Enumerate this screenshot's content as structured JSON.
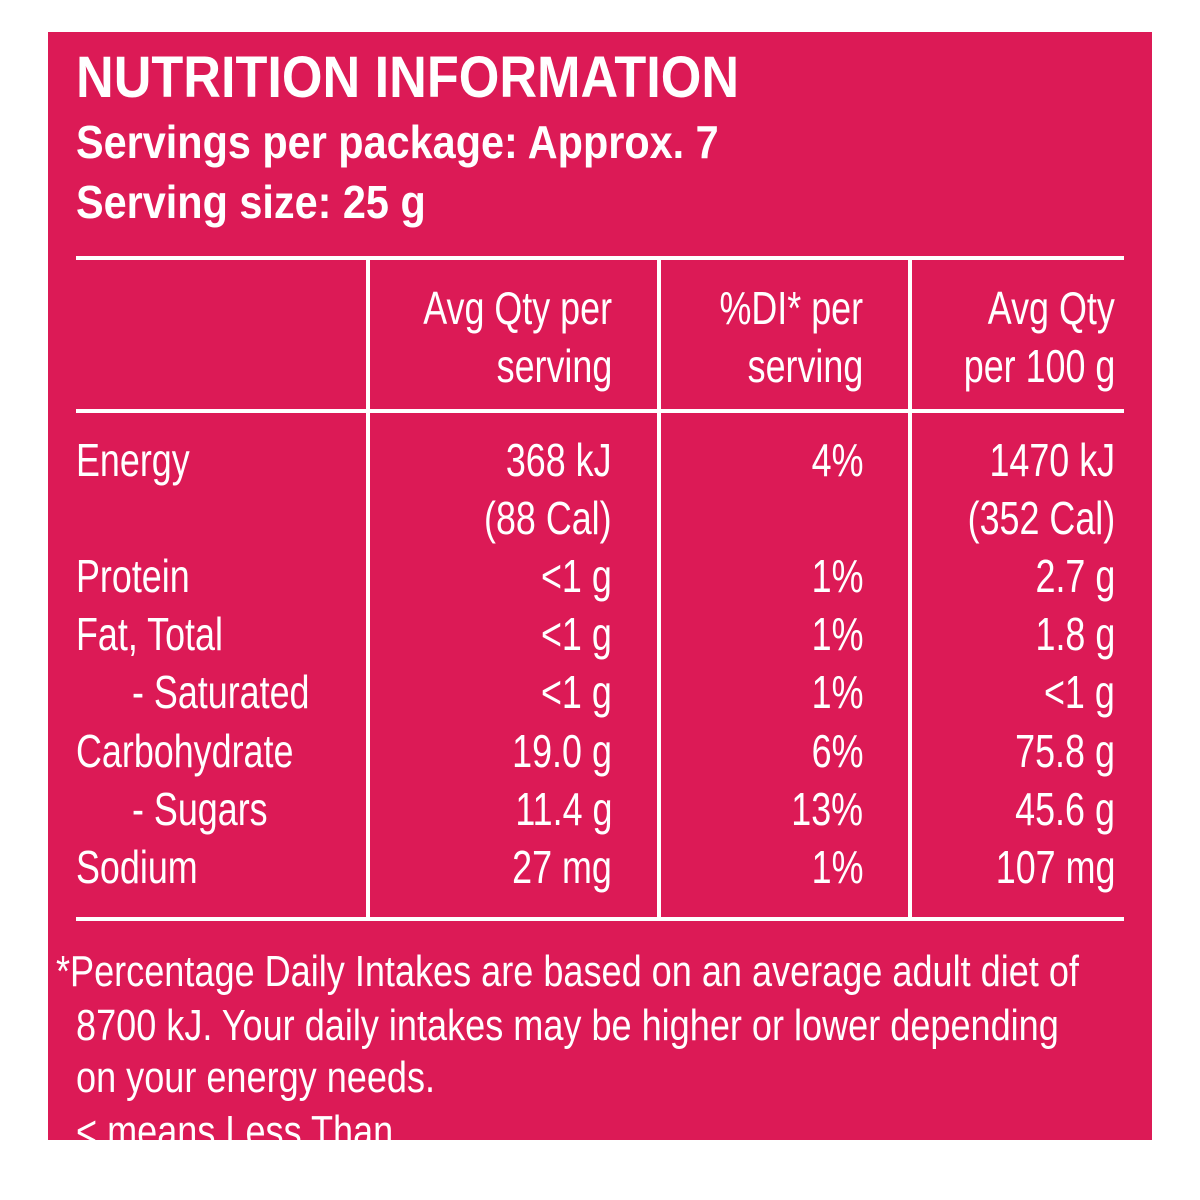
{
  "label": {
    "title": "NUTRITION INFORMATION",
    "servings_per_package": "Servings per package: Approx. 7",
    "serving_size": "Serving size: 25 g"
  },
  "table": {
    "headers": {
      "col1_line1": "Avg Qty per",
      "col1_line2": "serving",
      "col2_line1": "%DI* per",
      "col2_line2": "serving",
      "col3_line1": "Avg Qty",
      "col3_line2": "per 100 g"
    },
    "rows": [
      {
        "nutrient": "Energy",
        "per_serving": "368 kJ",
        "per_serving_extra": "(88 Cal)",
        "di": "4%",
        "per_100g": "1470 kJ",
        "per_100g_extra": "(352 Cal)"
      },
      {
        "nutrient": "Protein",
        "per_serving": "<1 g",
        "di": "1%",
        "per_100g": "2.7 g"
      },
      {
        "nutrient": "Fat, Total",
        "per_serving": "<1 g",
        "di": "1%",
        "per_100g": "1.8 g"
      },
      {
        "nutrient": "- Saturated",
        "per_serving": "<1 g",
        "di": "1%",
        "per_100g": "<1 g"
      },
      {
        "nutrient": "Carbohydrate",
        "per_serving": "19.0 g",
        "di": "6%",
        "per_100g": "75.8 g"
      },
      {
        "nutrient": "- Sugars",
        "per_serving": "11.4 g",
        "di": "13%",
        "per_100g": "45.6 g"
      },
      {
        "nutrient": "Sodium",
        "per_serving": "27 mg",
        "di": "1%",
        "per_100g": "107 mg"
      }
    ]
  },
  "footnote": {
    "line1": "*Percentage Daily Intakes are based on an average adult diet of",
    "line2": "8700 kJ. Your daily intakes may be higher or lower depending",
    "line3": "on your energy needs.",
    "less_than_note": "< means Less Than"
  },
  "colors": {
    "panel_background": "#dc1a56",
    "text": "#ffffff"
  }
}
